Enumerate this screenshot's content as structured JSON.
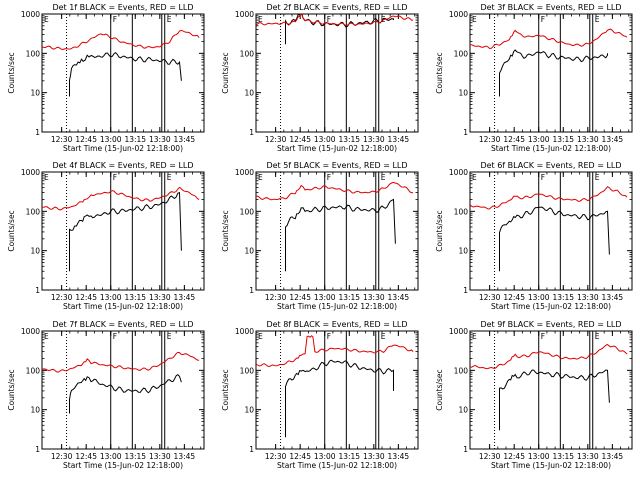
{
  "figure": {
    "rows": 3,
    "cols": 3,
    "colors": {
      "events": "#000000",
      "lld": "#e00000",
      "axes": "#000000",
      "background": "#ffffff"
    }
  },
  "chart_data": [
    {
      "type": "line",
      "title": "Det 1f BLACK = Events, RED = LLD",
      "xlabel": "Start Time (15-Jun-02 12:18:00)",
      "ylabel": "Counts/sec",
      "yscale": "log",
      "ylim": [
        1,
        1000
      ],
      "xlim": [
        12.3,
        13.95
      ],
      "xticks": [
        "12:30",
        "12:45",
        "13:00",
        "13:15",
        "13:30",
        "13:45"
      ],
      "yticks": [
        "1",
        "10",
        "100",
        "1000"
      ],
      "markers": [
        "E",
        "F",
        "E"
      ],
      "events_start": 12.58,
      "events_first": 8,
      "events_end": 13.72,
      "events_last": 20,
      "series": [
        {
          "name": "Events",
          "color": "#000000",
          "x": [
            12.58,
            12.6,
            12.65,
            12.72,
            12.76,
            12.8,
            12.9,
            13.0,
            13.1,
            13.2,
            13.3,
            13.4,
            13.5,
            13.6,
            13.7
          ],
          "values": [
            20,
            40,
            55,
            65,
            90,
            80,
            85,
            95,
            85,
            75,
            70,
            70,
            65,
            60,
            60
          ]
        },
        {
          "name": "LLD",
          "color": "#e00000",
          "x": [
            12.3,
            12.4,
            12.5,
            12.6,
            12.7,
            12.8,
            12.9,
            13.0,
            13.1,
            13.2,
            13.3,
            13.4,
            13.5,
            13.6,
            13.7,
            13.8,
            13.9
          ],
          "values": [
            150,
            140,
            130,
            130,
            170,
            230,
            320,
            260,
            200,
            170,
            150,
            140,
            150,
            200,
            380,
            330,
            250
          ]
        }
      ]
    },
    {
      "type": "line",
      "title": "Det 2f BLACK = Events, RED = LLD",
      "xlabel": "Start Time (15-Jun-02 12:18:00)",
      "ylabel": "Counts/sec",
      "yscale": "log",
      "ylim": [
        1,
        1000
      ],
      "xlim": [
        12.3,
        13.95
      ],
      "xticks": [
        "12:30",
        "12:45",
        "13:00",
        "13:15",
        "13:30",
        "13:45"
      ],
      "yticks": [
        "1",
        "10",
        "100",
        "1000"
      ],
      "markers": [
        "E",
        "F",
        "E"
      ],
      "events_start": 12.6,
      "events_first": 170,
      "events_end": 13.7,
      "events_last": 700,
      "series": [
        {
          "name": "Events",
          "color": "#000000",
          "x": [
            12.6,
            12.7,
            12.76,
            12.8,
            12.9,
            13.0,
            13.1,
            13.2,
            13.3,
            13.4,
            13.5,
            13.6,
            13.7
          ],
          "values": [
            600,
            650,
            1100,
            700,
            600,
            560,
            550,
            540,
            560,
            600,
            650,
            700,
            750
          ]
        },
        {
          "name": "LLD",
          "color": "#e00000",
          "x": [
            12.3,
            12.4,
            12.5,
            12.6,
            12.7,
            12.76,
            12.8,
            12.9,
            13.0,
            13.1,
            13.2,
            13.3,
            13.4,
            13.5,
            13.6,
            13.7,
            13.8,
            13.9
          ],
          "values": [
            560,
            560,
            570,
            580,
            620,
            1000,
            700,
            620,
            580,
            560,
            550,
            550,
            560,
            600,
            680,
            900,
            800,
            700
          ]
        }
      ]
    },
    {
      "type": "line",
      "title": "Det 3f BLACK = Events, RED = LLD",
      "xlabel": "Start Time (15-Jun-02 12:18:00)",
      "ylabel": "Counts/sec",
      "yscale": "log",
      "ylim": [
        1,
        1000
      ],
      "xlim": [
        12.3,
        13.95
      ],
      "xticks": [
        "12:30",
        "12:45",
        "13:00",
        "13:15",
        "13:30",
        "13:45"
      ],
      "yticks": [
        "1",
        "10",
        "100",
        "1000"
      ],
      "markers": [
        "E",
        "F",
        "E"
      ],
      "events_start": 12.6,
      "events_first": 8,
      "events_end": 13.7,
      "events_last": 100,
      "series": [
        {
          "name": "Events",
          "color": "#000000",
          "x": [
            12.6,
            12.65,
            12.7,
            12.76,
            12.8,
            12.9,
            13.0,
            13.1,
            13.2,
            13.3,
            13.4,
            13.5,
            13.6,
            13.7
          ],
          "values": [
            35,
            55,
            70,
            120,
            90,
            85,
            110,
            90,
            80,
            75,
            70,
            75,
            80,
            90
          ]
        },
        {
          "name": "LLD",
          "color": "#e00000",
          "x": [
            12.3,
            12.4,
            12.5,
            12.6,
            12.7,
            12.76,
            12.8,
            12.9,
            13.0,
            13.1,
            13.2,
            13.3,
            13.4,
            13.5,
            13.6,
            13.7,
            13.8,
            13.9
          ],
          "values": [
            160,
            150,
            140,
            170,
            220,
            380,
            300,
            260,
            290,
            240,
            200,
            170,
            160,
            170,
            240,
            400,
            340,
            260
          ]
        }
      ]
    },
    {
      "type": "line",
      "title": "Det 4f BLACK = Events, RED = LLD",
      "xlabel": "Start Time (15-Jun-02 12:18:00)",
      "ylabel": "Counts/sec",
      "yscale": "log",
      "ylim": [
        1,
        1000
      ],
      "xlim": [
        12.3,
        13.95
      ],
      "xticks": [
        "12:30",
        "12:45",
        "13:00",
        "13:15",
        "13:30",
        "13:45"
      ],
      "yticks": [
        "1",
        "10",
        "100",
        "1000"
      ],
      "markers": [
        "E",
        "F",
        "E"
      ],
      "events_start": 12.58,
      "events_first": 3,
      "events_end": 13.72,
      "events_last": 10,
      "series": [
        {
          "name": "Events",
          "color": "#000000",
          "x": [
            12.58,
            12.65,
            12.7,
            12.76,
            12.8,
            12.9,
            13.0,
            13.1,
            13.2,
            13.3,
            13.4,
            13.5,
            13.6,
            13.7
          ],
          "values": [
            30,
            45,
            55,
            90,
            75,
            80,
            100,
            100,
            110,
            120,
            130,
            150,
            200,
            300
          ]
        },
        {
          "name": "LLD",
          "color": "#e00000",
          "x": [
            12.3,
            12.4,
            12.5,
            12.6,
            12.7,
            12.76,
            12.8,
            12.9,
            13.0,
            13.1,
            13.2,
            13.3,
            13.4,
            13.5,
            13.6,
            13.7,
            13.8,
            13.9
          ],
          "values": [
            130,
            120,
            115,
            130,
            170,
            220,
            260,
            280,
            320,
            280,
            230,
            200,
            190,
            220,
            280,
            380,
            300,
            200
          ]
        }
      ]
    },
    {
      "type": "line",
      "title": "Det 5f BLACK = Events, RED = LLD",
      "xlabel": "Start Time (15-Jun-02 12:18:00)",
      "ylabel": "Counts/sec",
      "yscale": "log",
      "ylim": [
        1,
        1000
      ],
      "xlim": [
        12.3,
        13.95
      ],
      "xticks": [
        "12:30",
        "12:45",
        "13:00",
        "13:15",
        "13:30",
        "13:45"
      ],
      "yticks": [
        "1",
        "10",
        "100",
        "1000"
      ],
      "markers": [
        "E",
        "F",
        "E"
      ],
      "events_start": 12.6,
      "events_first": 3,
      "events_end": 13.72,
      "events_last": 15,
      "series": [
        {
          "name": "Events",
          "color": "#000000",
          "x": [
            12.6,
            12.65,
            12.7,
            12.76,
            12.8,
            12.9,
            13.0,
            13.1,
            13.2,
            13.3,
            13.4,
            13.5,
            13.6,
            13.7
          ],
          "values": [
            45,
            60,
            75,
            120,
            100,
            110,
            120,
            125,
            130,
            115,
            110,
            105,
            120,
            200
          ]
        },
        {
          "name": "LLD",
          "color": "#e00000",
          "x": [
            12.3,
            12.4,
            12.5,
            12.6,
            12.7,
            12.76,
            12.8,
            12.9,
            13.0,
            13.1,
            13.2,
            13.3,
            13.4,
            13.5,
            13.6,
            13.7,
            13.8,
            13.9
          ],
          "values": [
            230,
            210,
            200,
            220,
            300,
            450,
            350,
            380,
            420,
            380,
            340,
            310,
            300,
            310,
            380,
            550,
            420,
            300
          ]
        }
      ]
    },
    {
      "type": "line",
      "title": "Det 6f BLACK = Events, RED = LLD",
      "xlabel": "Start Time (15-Jun-02 12:18:00)",
      "ylabel": "Counts/sec",
      "yscale": "log",
      "ylim": [
        1,
        1000
      ],
      "xlim": [
        12.3,
        13.95
      ],
      "xticks": [
        "12:30",
        "12:45",
        "13:00",
        "13:15",
        "13:30",
        "13:45"
      ],
      "yticks": [
        "1",
        "10",
        "100",
        "1000"
      ],
      "markers": [
        "E",
        "F",
        "E"
      ],
      "events_start": 12.6,
      "events_first": 3,
      "events_end": 13.72,
      "events_last": 8,
      "series": [
        {
          "name": "Events",
          "color": "#000000",
          "x": [
            12.6,
            12.65,
            12.7,
            12.76,
            12.8,
            12.9,
            13.0,
            13.1,
            13.2,
            13.3,
            13.4,
            13.5,
            13.6,
            13.7
          ],
          "values": [
            30,
            45,
            55,
            80,
            75,
            90,
            130,
            110,
            90,
            80,
            75,
            70,
            80,
            100
          ]
        },
        {
          "name": "LLD",
          "color": "#e00000",
          "x": [
            12.3,
            12.4,
            12.5,
            12.6,
            12.7,
            12.76,
            12.8,
            12.9,
            13.0,
            13.1,
            13.2,
            13.3,
            13.4,
            13.5,
            13.6,
            13.7,
            13.8,
            13.9
          ],
          "values": [
            140,
            130,
            120,
            140,
            190,
            260,
            220,
            230,
            280,
            240,
            210,
            200,
            190,
            200,
            260,
            400,
            320,
            230
          ]
        }
      ]
    },
    {
      "type": "line",
      "title": "Det 7f BLACK = Events, RED = LLD",
      "xlabel": "Start Time (15-Jun-02 12:18:00)",
      "ylabel": "Counts/sec",
      "yscale": "log",
      "ylim": [
        1,
        1000
      ],
      "xlim": [
        12.3,
        13.95
      ],
      "xticks": [
        "12:30",
        "12:45",
        "13:00",
        "13:15",
        "13:30",
        "13:45"
      ],
      "yticks": [
        "1",
        "10",
        "100",
        "1000"
      ],
      "markers": [
        "E",
        "F",
        "E"
      ],
      "events_start": 12.58,
      "events_first": 8,
      "events_end": 13.72,
      "events_last": 50,
      "series": [
        {
          "name": "Events",
          "color": "#000000",
          "x": [
            12.58,
            12.6,
            12.65,
            12.7,
            12.76,
            12.8,
            12.9,
            13.0,
            13.1,
            13.2,
            13.3,
            13.4,
            13.5,
            13.6,
            13.7
          ],
          "values": [
            20,
            30,
            40,
            55,
            65,
            60,
            45,
            38,
            32,
            30,
            30,
            32,
            40,
            55,
            70
          ]
        },
        {
          "name": "LLD",
          "color": "#e00000",
          "x": [
            12.3,
            12.4,
            12.5,
            12.6,
            12.7,
            12.76,
            12.8,
            12.9,
            13.0,
            13.1,
            13.2,
            13.3,
            13.4,
            13.5,
            13.6,
            13.7,
            13.8,
            13.9
          ],
          "values": [
            110,
            100,
            95,
            110,
            140,
            190,
            160,
            140,
            130,
            120,
            110,
            105,
            110,
            140,
            200,
            280,
            240,
            180
          ]
        }
      ]
    },
    {
      "type": "line",
      "title": "Det 8f BLACK = Events, RED = LLD",
      "xlabel": "Start Time (15-Jun-02 12:18:00)",
      "ylabel": "Counts/sec",
      "yscale": "log",
      "ylim": [
        1,
        1000
      ],
      "xlim": [
        12.3,
        13.95
      ],
      "xticks": [
        "12:30",
        "12:45",
        "13:00",
        "13:15",
        "13:30",
        "13:45"
      ],
      "yticks": [
        "1",
        "10",
        "100",
        "1000"
      ],
      "markers": [
        "E",
        "F",
        "E"
      ],
      "events_start": 12.6,
      "events_first": 2,
      "events_end": 13.7,
      "events_last": 30,
      "series": [
        {
          "name": "Events",
          "color": "#000000",
          "x": [
            12.6,
            12.65,
            12.7,
            12.76,
            12.8,
            12.9,
            13.0,
            13.1,
            13.2,
            13.3,
            13.4,
            13.5,
            13.6,
            13.7
          ],
          "values": [
            40,
            60,
            75,
            95,
            90,
            110,
            150,
            170,
            160,
            130,
            110,
            100,
            95,
            100
          ]
        },
        {
          "name": "LLD",
          "color": "#e00000",
          "x": [
            12.3,
            12.4,
            12.5,
            12.6,
            12.7,
            12.76,
            12.8,
            12.82,
            12.88,
            12.9,
            13.0,
            13.1,
            13.2,
            13.3,
            13.4,
            13.5,
            13.6,
            13.7,
            13.8,
            13.9
          ],
          "values": [
            140,
            135,
            130,
            150,
            190,
            240,
            260,
            700,
            700,
            300,
            330,
            360,
            350,
            320,
            300,
            290,
            310,
            450,
            380,
            300
          ]
        }
      ]
    },
    {
      "type": "line",
      "title": "Det 9f BLACK = Events, RED = LLD",
      "xlabel": "Start Time (15-Jun-02 12:18:00)",
      "ylabel": "Counts/sec",
      "yscale": "log",
      "ylim": [
        1,
        1000
      ],
      "xlim": [
        12.3,
        13.95
      ],
      "xticks": [
        "12:30",
        "12:45",
        "13:00",
        "13:15",
        "13:30",
        "13:45"
      ],
      "yticks": [
        "1",
        "10",
        "100",
        "1000"
      ],
      "markers": [
        "E",
        "F",
        "E"
      ],
      "events_start": 12.6,
      "events_first": 3,
      "events_end": 13.72,
      "events_last": 15,
      "series": [
        {
          "name": "Events",
          "color": "#000000",
          "x": [
            12.6,
            12.65,
            12.7,
            12.76,
            12.8,
            12.9,
            13.0,
            13.1,
            13.2,
            13.3,
            13.4,
            13.5,
            13.6,
            13.7
          ],
          "values": [
            30,
            40,
            55,
            75,
            70,
            90,
            90,
            80,
            75,
            70,
            65,
            65,
            80,
            100
          ]
        },
        {
          "name": "LLD",
          "color": "#e00000",
          "x": [
            12.3,
            12.4,
            12.5,
            12.6,
            12.7,
            12.76,
            12.8,
            12.9,
            13.0,
            13.1,
            13.2,
            13.3,
            13.4,
            13.5,
            13.6,
            13.7,
            13.8,
            13.9
          ],
          "values": [
            130,
            120,
            110,
            130,
            170,
            250,
            220,
            240,
            300,
            260,
            220,
            200,
            200,
            220,
            300,
            450,
            360,
            260
          ]
        }
      ]
    }
  ]
}
